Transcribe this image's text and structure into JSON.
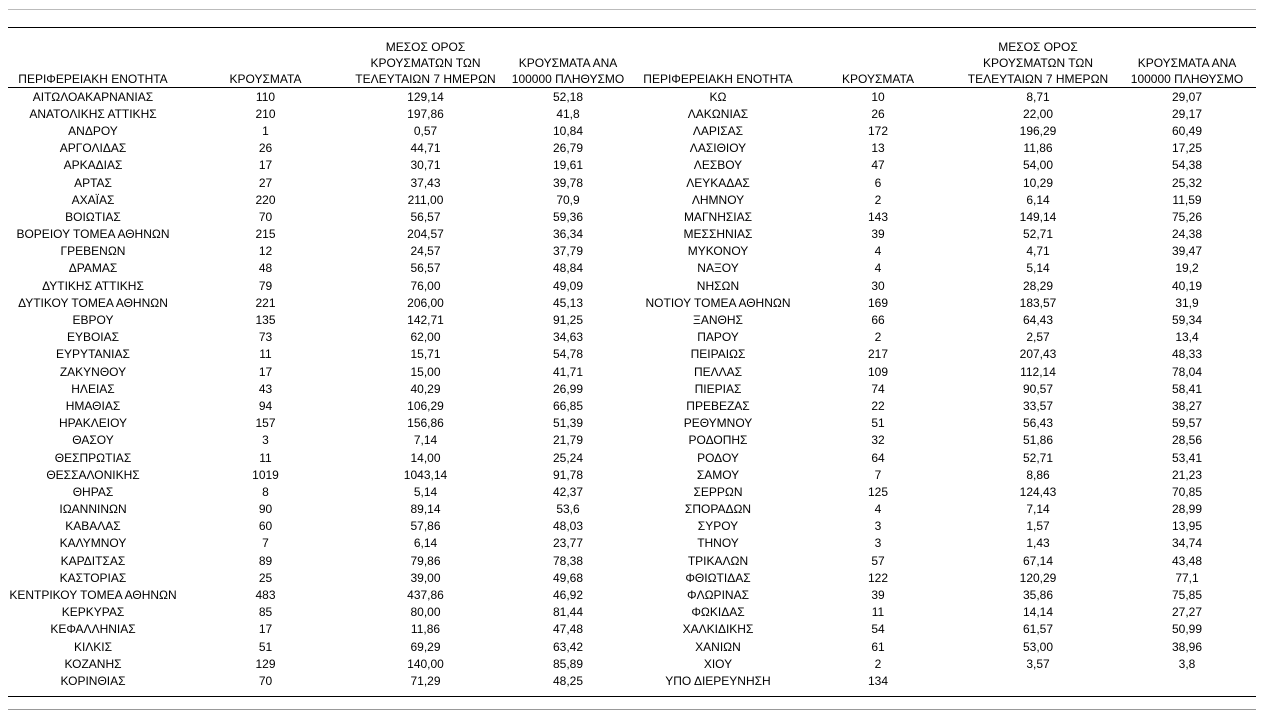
{
  "table": {
    "headers": [
      "ΠΕΡΙΦΕΡΕΙΑΚΗ ΕΝΟΤΗΤΑ",
      "ΚΡΟΥΣΜΑΤΑ",
      "ΜΕΣΟΣ ΟΡΟΣ ΚΡΟΥΣΜΑΤΩΝ ΤΩΝ ΤΕΛΕΥΤΑΙΩΝ 7 ΗΜΕΡΩΝ",
      "ΚΡΟΥΣΜΑΤΑ ΑΝΑ 100000 ΠΛΗΘΥΣΜΟ",
      "ΠΕΡΙΦΕΡΕΙΑΚΗ ΕΝΟΤΗΤΑ",
      "ΚΡΟΥΣΜΑΤΑ",
      "ΜΕΣΟΣ ΟΡΟΣ ΚΡΟΥΣΜΑΤΩΝ ΤΩΝ ΤΕΛΕΥΤΑΙΩΝ 7 ΗΜΕΡΩΝ",
      "ΚΡΟΥΣΜΑΤΑ ΑΝΑ 100000 ΠΛΗΘΥΣΜΟ"
    ],
    "rows": [
      [
        "ΑΙΤΩΛΟΑΚΑΡΝΑΝΙΑΣ",
        "110",
        "129,14",
        "52,18",
        "ΚΩ",
        "10",
        "8,71",
        "29,07"
      ],
      [
        "ΑΝΑΤΟΛΙΚΗΣ ΑΤΤΙΚΗΣ",
        "210",
        "197,86",
        "41,8",
        "ΛΑΚΩΝΙΑΣ",
        "26",
        "22,00",
        "29,17"
      ],
      [
        "ΑΝΔΡΟΥ",
        "1",
        "0,57",
        "10,84",
        "ΛΑΡΙΣΑΣ",
        "172",
        "196,29",
        "60,49"
      ],
      [
        "ΑΡΓΟΛΙΔΑΣ",
        "26",
        "44,71",
        "26,79",
        "ΛΑΣΙΘΙΟΥ",
        "13",
        "11,86",
        "17,25"
      ],
      [
        "ΑΡΚΑΔΙΑΣ",
        "17",
        "30,71",
        "19,61",
        "ΛΕΣΒΟΥ",
        "47",
        "54,00",
        "54,38"
      ],
      [
        "ΑΡΤΑΣ",
        "27",
        "37,43",
        "39,78",
        "ΛΕΥΚΑΔΑΣ",
        "6",
        "10,29",
        "25,32"
      ],
      [
        "ΑΧΑΪΑΣ",
        "220",
        "211,00",
        "70,9",
        "ΛΗΜΝΟΥ",
        "2",
        "6,14",
        "11,59"
      ],
      [
        "ΒΟΙΩΤΙΑΣ",
        "70",
        "56,57",
        "59,36",
        "ΜΑΓΝΗΣΙΑΣ",
        "143",
        "149,14",
        "75,26"
      ],
      [
        "ΒΟΡΕΙΟΥ ΤΟΜΕΑ ΑΘΗΝΩΝ",
        "215",
        "204,57",
        "36,34",
        "ΜΕΣΣΗΝΙΑΣ",
        "39",
        "52,71",
        "24,38"
      ],
      [
        "ΓΡΕΒΕΝΩΝ",
        "12",
        "24,57",
        "37,79",
        "ΜΥΚΟΝΟΥ",
        "4",
        "4,71",
        "39,47"
      ],
      [
        "ΔΡΑΜΑΣ",
        "48",
        "56,57",
        "48,84",
        "ΝΑΞΟΥ",
        "4",
        "5,14",
        "19,2"
      ],
      [
        "ΔΥΤΙΚΗΣ ΑΤΤΙΚΗΣ",
        "79",
        "76,00",
        "49,09",
        "ΝΗΣΩΝ",
        "30",
        "28,29",
        "40,19"
      ],
      [
        "ΔΥΤΙΚΟΥ ΤΟΜΕΑ ΑΘΗΝΩΝ",
        "221",
        "206,00",
        "45,13",
        "ΝΟΤΙΟΥ ΤΟΜΕΑ ΑΘΗΝΩΝ",
        "169",
        "183,57",
        "31,9"
      ],
      [
        "ΕΒΡΟΥ",
        "135",
        "142,71",
        "91,25",
        "ΞΑΝΘΗΣ",
        "66",
        "64,43",
        "59,34"
      ],
      [
        "ΕΥΒΟΙΑΣ",
        "73",
        "62,00",
        "34,63",
        "ΠΑΡΟΥ",
        "2",
        "2,57",
        "13,4"
      ],
      [
        "ΕΥΡΥΤΑΝΙΑΣ",
        "11",
        "15,71",
        "54,78",
        "ΠΕΙΡΑΙΩΣ",
        "217",
        "207,43",
        "48,33"
      ],
      [
        "ΖΑΚΥΝΘΟΥ",
        "17",
        "15,00",
        "41,71",
        "ΠΕΛΛΑΣ",
        "109",
        "112,14",
        "78,04"
      ],
      [
        "ΗΛΕΙΑΣ",
        "43",
        "40,29",
        "26,99",
        "ΠΙΕΡΙΑΣ",
        "74",
        "90,57",
        "58,41"
      ],
      [
        "ΗΜΑΘΙΑΣ",
        "94",
        "106,29",
        "66,85",
        "ΠΡΕΒΕΖΑΣ",
        "22",
        "33,57",
        "38,27"
      ],
      [
        "ΗΡΑΚΛΕΙΟΥ",
        "157",
        "156,86",
        "51,39",
        "ΡΕΘΥΜΝΟΥ",
        "51",
        "56,43",
        "59,57"
      ],
      [
        "ΘΑΣΟΥ",
        "3",
        "7,14",
        "21,79",
        "ΡΟΔΟΠΗΣ",
        "32",
        "51,86",
        "28,56"
      ],
      [
        "ΘΕΣΠΡΩΤΙΑΣ",
        "11",
        "14,00",
        "25,24",
        "ΡΟΔΟΥ",
        "64",
        "52,71",
        "53,41"
      ],
      [
        "ΘΕΣΣΑΛΟΝΙΚΗΣ",
        "1019",
        "1043,14",
        "91,78",
        "ΣΑΜΟΥ",
        "7",
        "8,86",
        "21,23"
      ],
      [
        "ΘΗΡΑΣ",
        "8",
        "5,14",
        "42,37",
        "ΣΕΡΡΩΝ",
        "125",
        "124,43",
        "70,85"
      ],
      [
        "ΙΩΑΝΝΙΝΩΝ",
        "90",
        "89,14",
        "53,6",
        "ΣΠΟΡΑΔΩΝ",
        "4",
        "7,14",
        "28,99"
      ],
      [
        "ΚΑΒΑΛΑΣ",
        "60",
        "57,86",
        "48,03",
        "ΣΥΡΟΥ",
        "3",
        "1,57",
        "13,95"
      ],
      [
        "ΚΑΛΥΜΝΟΥ",
        "7",
        "6,14",
        "23,77",
        "ΤΗΝΟΥ",
        "3",
        "1,43",
        "34,74"
      ],
      [
        "ΚΑΡΔΙΤΣΑΣ",
        "89",
        "79,86",
        "78,38",
        "ΤΡΙΚΑΛΩΝ",
        "57",
        "67,14",
        "43,48"
      ],
      [
        "ΚΑΣΤΟΡΙΑΣ",
        "25",
        "39,00",
        "49,68",
        "ΦΘΙΩΤΙΔΑΣ",
        "122",
        "120,29",
        "77,1"
      ],
      [
        "ΚΕΝΤΡΙΚΟΥ ΤΟΜΕΑ ΑΘΗΝΩΝ",
        "483",
        "437,86",
        "46,92",
        "ΦΛΩΡΙΝΑΣ",
        "39",
        "35,86",
        "75,85"
      ],
      [
        "ΚΕΡΚΥΡΑΣ",
        "85",
        "80,00",
        "81,44",
        "ΦΩΚΙΔΑΣ",
        "11",
        "14,14",
        "27,27"
      ],
      [
        "ΚΕΦΑΛΛΗΝΙΑΣ",
        "17",
        "11,86",
        "47,48",
        "ΧΑΛΚΙΔΙΚΗΣ",
        "54",
        "61,57",
        "50,99"
      ],
      [
        "ΚΙΛΚΙΣ",
        "51",
        "69,29",
        "63,42",
        "ΧΑΝΙΩΝ",
        "61",
        "53,00",
        "38,96"
      ],
      [
        "ΚΟΖΑΝΗΣ",
        "129",
        "140,00",
        "85,89",
        "ΧΙΟΥ",
        "2",
        "3,57",
        "3,8"
      ],
      [
        "ΚΟΡΙΝΘΙΑΣ",
        "70",
        "71,29",
        "48,25",
        "ΥΠΟ ΔΙΕΡΕΥΝΗΣΗ",
        "134"
      ]
    ]
  }
}
